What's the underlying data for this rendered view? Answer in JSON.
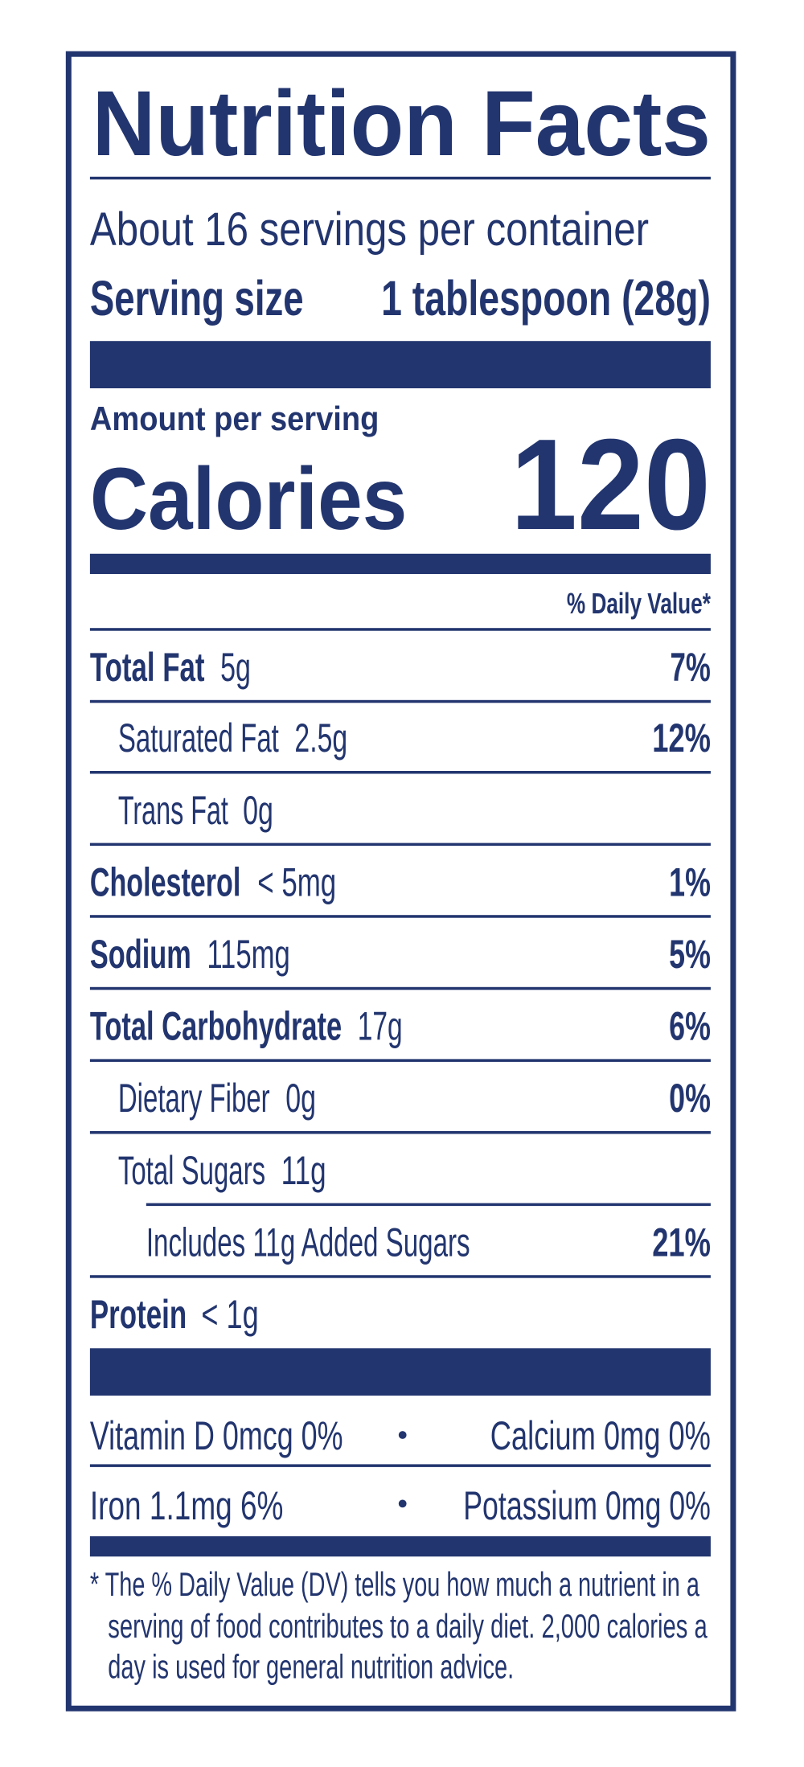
{
  "header": {
    "title": "Nutrition Facts",
    "servings": "About 16 servings per container",
    "serving_size_label": "Serving size",
    "serving_size_value": "1 tablespoon (28g)"
  },
  "calories": {
    "amount_label": "Amount per serving",
    "label": "Calories",
    "value": 120
  },
  "daily_value_header": "% Daily Value*",
  "nutrients": [
    {
      "name": "Total Fat",
      "amount": "5g",
      "dv": "7%"
    },
    {
      "name": "Saturated Fat",
      "amount": "2.5g",
      "dv": "12%"
    },
    {
      "name": "Trans Fat",
      "amount": "0g"
    },
    {
      "name": "Cholesterol",
      "amount": "< 5mg",
      "dv": "1%"
    },
    {
      "name": "Sodium",
      "amount": "115mg",
      "dv": "5%"
    },
    {
      "name": "Total Carbohydrate",
      "amount": "17g",
      "dv": "6%"
    },
    {
      "name": "Dietary Fiber",
      "amount": "0g",
      "dv": "0%"
    },
    {
      "name": "Total Sugars",
      "amount": "11g"
    },
    {
      "name": "Includes 11g Added Sugars",
      "dv": "21%"
    },
    {
      "name": "Protein",
      "amount": "< 1g"
    }
  ],
  "vitamins": [
    [
      "Vitamin D  0mcg  0%",
      "Calcium  0mg  0%"
    ],
    [
      "Iron  1.1mg  6%",
      "Potassium  0mg  0%"
    ]
  ],
  "footnote": [
    "* The % Daily Value (DV) tells you how much a nutrient in a",
    "serving of food contributes to a daily diet. 2,000 calories a",
    "day is used for general nutrition advice."
  ]
}
